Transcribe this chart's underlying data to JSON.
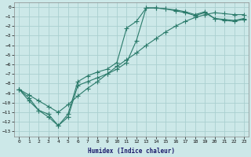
{
  "xlabel": "Humidex (Indice chaleur)",
  "background_color": "#cce8e8",
  "grid_color": "#aad0d0",
  "line_color": "#2a7a6a",
  "xlim": [
    -0.5,
    23.5
  ],
  "ylim": [
    -13.5,
    0.5
  ],
  "xticks": [
    0,
    1,
    2,
    3,
    4,
    5,
    6,
    7,
    8,
    9,
    10,
    11,
    12,
    13,
    14,
    15,
    16,
    17,
    18,
    19,
    20,
    21,
    22,
    23
  ],
  "yticks": [
    0,
    -1,
    -2,
    -3,
    -4,
    -5,
    -6,
    -7,
    -8,
    -9,
    -10,
    -11,
    -12,
    -13
  ],
  "line1_x": [
    0,
    1,
    2,
    3,
    4,
    5,
    6,
    7,
    8,
    9,
    10,
    11,
    12,
    13,
    14,
    15,
    16,
    17,
    18,
    19,
    20,
    21,
    22,
    23
  ],
  "line1_y": [
    -8.6,
    -9.8,
    -10.8,
    -11.5,
    -12.4,
    -11.2,
    -7.8,
    -7.2,
    -6.8,
    -6.5,
    -5.8,
    -2.2,
    -1.5,
    -0.1,
    -0.1,
    -0.2,
    -0.3,
    -0.5,
    -0.8,
    -0.5,
    -1.2,
    -1.3,
    -1.4,
    -1.2
  ],
  "line2_x": [
    0,
    1,
    2,
    3,
    4,
    5,
    6,
    7,
    8,
    9,
    10,
    11,
    12,
    13,
    14,
    15,
    16,
    17,
    18,
    19,
    20,
    21,
    22,
    23
  ],
  "line2_y": [
    -8.6,
    -9.5,
    -10.8,
    -11.2,
    -12.4,
    -11.5,
    -8.2,
    -7.8,
    -7.4,
    -7.0,
    -6.5,
    -5.8,
    -3.5,
    -0.1,
    -0.1,
    -0.2,
    -0.4,
    -0.6,
    -0.9,
    -0.6,
    -1.2,
    -1.4,
    -1.5,
    -1.3
  ],
  "line3_x": [
    0,
    1,
    2,
    3,
    4,
    5,
    6,
    7,
    8,
    9,
    10,
    11,
    12,
    13,
    14,
    15,
    16,
    17,
    18,
    19,
    20,
    21,
    22,
    23
  ],
  "line3_y": [
    -8.6,
    -9.2,
    -9.8,
    -10.4,
    -11.0,
    -10.2,
    -9.3,
    -8.5,
    -7.8,
    -7.0,
    -6.2,
    -5.5,
    -4.8,
    -4.0,
    -3.3,
    -2.6,
    -2.0,
    -1.5,
    -1.1,
    -0.8,
    -0.6,
    -0.7,
    -0.8,
    -0.8
  ]
}
